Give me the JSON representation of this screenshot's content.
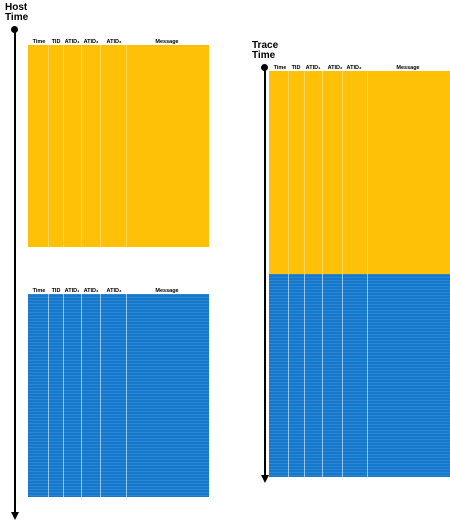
{
  "host_axis": {
    "line1": "Host",
    "line2": "Time"
  },
  "trace_axis": {
    "line1": "Trace",
    "line2": "Time"
  },
  "columns": [
    "Time",
    "TID",
    "ATID₁",
    "ATID₂",
    "ATID₃",
    "Message"
  ],
  "colors": {
    "yellow": "#ffc107",
    "blue": "#1478cc"
  }
}
